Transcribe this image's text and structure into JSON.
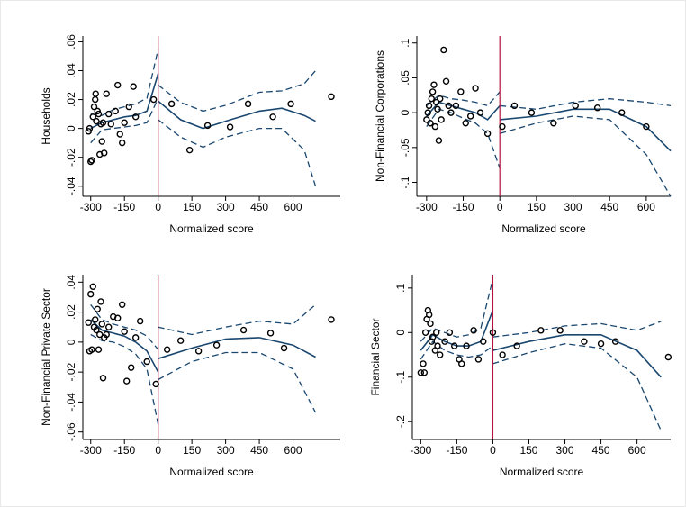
{
  "chart_data": [
    {
      "type": "scatter",
      "y_label": "Households",
      "x_label": "Normalized score",
      "xlim": [
        -335,
        810
      ],
      "ylim": [
        -0.047,
        0.064
      ],
      "xticks": [
        -300,
        -150,
        0,
        150,
        300,
        450,
        600
      ],
      "yticks": [
        {
          "value": -0.04,
          "label": "-.04"
        },
        {
          "value": -0.02,
          "label": "-.02"
        },
        0,
        {
          "value": 0.02,
          "label": ".02"
        },
        {
          "value": 0.04,
          "label": ".04"
        },
        {
          "value": 0.06,
          "label": ".06"
        }
      ],
      "vline": 0,
      "vline_color": "#b5123e",
      "series": [
        {
          "type": "scatter",
          "color": "#000000",
          "x": [
            -310,
            -305,
            -300,
            -295,
            -290,
            -285,
            -280,
            -278,
            -275,
            -270,
            -265,
            -260,
            -255,
            -250,
            -245,
            -240,
            -230,
            -220,
            -210,
            -190,
            -180,
            -170,
            -160,
            -150,
            -130,
            -110,
            -100,
            -20,
            60,
            140,
            220,
            320,
            400,
            510,
            590,
            770
          ],
          "values": [
            -0.002,
            0.0,
            -0.023,
            -0.022,
            0.008,
            0.015,
            0.02,
            0.024,
            0.005,
            0.012,
            0.01,
            -0.018,
            0.003,
            -0.009,
            0.004,
            -0.017,
            0.024,
            0.01,
            0.003,
            0.012,
            0.03,
            -0.004,
            -0.01,
            0.004,
            0.015,
            0.029,
            0.008,
            0.02,
            0.017,
            -0.015,
            0.002,
            0.001,
            0.017,
            0.008,
            0.017,
            0.022
          ]
        },
        {
          "type": "line",
          "style": "solid",
          "color": "#1a476f",
          "x": [
            -300,
            -250,
            -200,
            -150,
            -100,
            -50,
            0,
            null,
            0,
            100,
            200,
            300,
            450,
            550,
            650,
            700
          ],
          "values": [
            0.0,
            0.004,
            0.006,
            0.008,
            0.009,
            0.012,
            0.038,
            null,
            0.019,
            0.006,
            0.0,
            0.005,
            0.012,
            0.014,
            0.009,
            0.005
          ]
        },
        {
          "type": "line",
          "style": "dashed",
          "color": "#1a476f",
          "x": [
            -300,
            -250,
            -200,
            -150,
            -100,
            -50,
            0,
            null,
            0,
            100,
            200,
            300,
            450,
            550,
            650,
            700
          ],
          "values": [
            0.01,
            0.009,
            0.013,
            0.015,
            0.017,
            0.021,
            0.055,
            null,
            0.03,
            0.018,
            0.012,
            0.016,
            0.025,
            0.026,
            0.031,
            0.04
          ]
        },
        {
          "type": "line",
          "style": "dashed",
          "color": "#1a476f",
          "x": [
            -300,
            -250,
            -200,
            -150,
            -100,
            -50,
            0,
            null,
            0,
            100,
            200,
            300,
            450,
            550,
            650,
            700
          ],
          "values": [
            -0.01,
            -0.001,
            0.0,
            0.001,
            0.002,
            0.004,
            0.021,
            null,
            0.006,
            -0.006,
            -0.013,
            -0.006,
            0.0,
            0.0,
            -0.015,
            -0.04
          ]
        }
      ]
    },
    {
      "type": "scatter",
      "y_label": "Non-Financial Corporations",
      "x_label": "Normalized score",
      "xlim": [
        -340,
        700
      ],
      "ylim": [
        -0.12,
        0.11
      ],
      "xticks": [
        -300,
        -150,
        0,
        150,
        300,
        450,
        600
      ],
      "yticks": [
        {
          "value": -0.1,
          "label": "-.1"
        },
        {
          "value": -0.05,
          "label": "-.05"
        },
        0,
        {
          "value": 0.05,
          "label": ".05"
        },
        {
          "value": 0.1,
          "label": ".1"
        }
      ],
      "vline": 0,
      "vline_color": "#b5123e",
      "series": [
        {
          "type": "scatter",
          "color": "#000000",
          "x": [
            -300,
            -295,
            -290,
            -285,
            -280,
            -275,
            -270,
            -265,
            -260,
            -255,
            -250,
            -245,
            -240,
            -230,
            -220,
            -210,
            -200,
            -180,
            -160,
            -140,
            -120,
            -100,
            -80,
            -50,
            10,
            60,
            130,
            220,
            310,
            400,
            500,
            600
          ],
          "values": [
            -0.01,
            0.0,
            0.01,
            -0.015,
            0.02,
            0.03,
            0.04,
            -0.02,
            0.015,
            0.005,
            -0.04,
            0.02,
            -0.01,
            0.09,
            0.045,
            0.01,
            0.0,
            0.01,
            0.03,
            -0.015,
            -0.005,
            0.035,
            0.0,
            -0.03,
            -0.02,
            0.01,
            0.0,
            -0.015,
            0.01,
            0.007,
            0.0,
            -0.02
          ]
        },
        {
          "type": "line",
          "style": "solid",
          "color": "#1a476f",
          "x": [
            -300,
            -250,
            -200,
            -150,
            -100,
            -50,
            0,
            null,
            0,
            150,
            300,
            450,
            600,
            700
          ],
          "values": [
            -0.005,
            0.015,
            0.01,
            0.005,
            0.0,
            -0.01,
            0.01,
            null,
            -0.01,
            -0.005,
            0.005,
            0.005,
            -0.02,
            -0.055
          ]
        },
        {
          "type": "line",
          "style": "dashed",
          "color": "#1a476f",
          "x": [
            -300,
            -250,
            -200,
            -150,
            -100,
            -50,
            0,
            null,
            0,
            150,
            300,
            450,
            600,
            700
          ],
          "values": [
            0.01,
            0.025,
            0.02,
            0.018,
            0.015,
            0.01,
            0.03,
            null,
            0.01,
            0.005,
            0.015,
            0.02,
            0.015,
            0.01
          ]
        },
        {
          "type": "line",
          "style": "dashed",
          "color": "#1a476f",
          "x": [
            -300,
            -250,
            -200,
            -150,
            -100,
            -50,
            0,
            null,
            0,
            150,
            300,
            450,
            600,
            700
          ],
          "values": [
            -0.02,
            0.005,
            0.0,
            -0.008,
            -0.015,
            -0.03,
            -0.08,
            null,
            -0.03,
            -0.015,
            -0.005,
            -0.01,
            -0.06,
            -0.12
          ]
        }
      ]
    },
    {
      "type": "scatter",
      "y_label": "Non-Financial Private Sector",
      "x_label": "Normalized score",
      "xlim": [
        -335,
        810
      ],
      "ylim": [
        -0.065,
        0.045
      ],
      "xticks": [
        -300,
        -150,
        0,
        150,
        300,
        450,
        600
      ],
      "yticks": [
        {
          "value": -0.06,
          "label": "-.06"
        },
        {
          "value": -0.04,
          "label": "-.04"
        },
        {
          "value": -0.02,
          "label": "-.02"
        },
        0,
        {
          "value": 0.02,
          "label": ".02"
        },
        {
          "value": 0.04,
          "label": ".04"
        }
      ],
      "vline": 0,
      "vline_color": "#b5123e",
      "series": [
        {
          "type": "scatter",
          "color": "#000000",
          "x": [
            -310,
            -305,
            -300,
            -295,
            -290,
            -285,
            -280,
            -275,
            -270,
            -265,
            -260,
            -255,
            -250,
            -245,
            -240,
            -230,
            -220,
            -200,
            -180,
            -160,
            -150,
            -140,
            -120,
            -100,
            -80,
            -50,
            -10,
            40,
            100,
            180,
            260,
            380,
            500,
            560,
            770
          ],
          "values": [
            0.013,
            -0.006,
            0.032,
            -0.005,
            0.037,
            0.01,
            0.015,
            0.008,
            0.022,
            -0.005,
            0.005,
            0.027,
            0.012,
            -0.024,
            0.003,
            0.005,
            0.01,
            0.017,
            0.016,
            0.025,
            0.007,
            -0.026,
            -0.017,
            0.003,
            0.014,
            -0.013,
            -0.028,
            -0.005,
            0.001,
            -0.006,
            -0.002,
            0.008,
            0.006,
            -0.004,
            0.015
          ]
        },
        {
          "type": "line",
          "style": "solid",
          "color": "#1a476f",
          "x": [
            -300,
            -250,
            -200,
            -150,
            -100,
            -50,
            0,
            null,
            0,
            150,
            300,
            450,
            600,
            700
          ],
          "values": [
            0.015,
            0.008,
            0.006,
            0.004,
            0.0,
            -0.006,
            -0.02,
            null,
            -0.011,
            -0.004,
            0.002,
            0.003,
            -0.002,
            -0.01
          ]
        },
        {
          "type": "line",
          "style": "dashed",
          "color": "#1a476f",
          "x": [
            -300,
            -250,
            -200,
            -150,
            -100,
            -50,
            0,
            null,
            0,
            150,
            300,
            450,
            600,
            700
          ],
          "values": [
            0.025,
            0.015,
            0.012,
            0.01,
            0.008,
            0.004,
            -0.005,
            null,
            0.01,
            0.005,
            0.01,
            0.014,
            0.012,
            0.025
          ]
        },
        {
          "type": "line",
          "style": "dashed",
          "color": "#1a476f",
          "x": [
            -300,
            -250,
            -200,
            -150,
            -100,
            -50,
            0,
            null,
            0,
            150,
            300,
            450,
            600,
            700
          ],
          "values": [
            0.005,
            0.001,
            0.0,
            -0.003,
            -0.008,
            -0.018,
            -0.055,
            null,
            -0.025,
            -0.013,
            -0.007,
            -0.007,
            -0.018,
            -0.047
          ]
        }
      ]
    },
    {
      "type": "scatter",
      "y_label": "Financial Sector",
      "x_label": "Normalized score",
      "xlim": [
        -335,
        740
      ],
      "ylim": [
        -0.24,
        0.13
      ],
      "xticks": [
        -300,
        -150,
        0,
        150,
        300,
        450,
        600
      ],
      "yticks": [
        {
          "value": -0.2,
          "label": "-.2"
        },
        {
          "value": -0.1,
          "label": "-.1"
        },
        0,
        {
          "value": 0.1,
          "label": ".1"
        }
      ],
      "vline": 0,
      "vline_color": "#b5123e",
      "series": [
        {
          "type": "scatter",
          "color": "#000000",
          "x": [
            -300,
            -290,
            -285,
            -280,
            -275,
            -270,
            -265,
            -260,
            -255,
            -250,
            -240,
            -235,
            -230,
            -220,
            -200,
            -180,
            -160,
            -140,
            -130,
            -110,
            -80,
            -60,
            -40,
            0,
            40,
            100,
            200,
            280,
            380,
            450,
            510,
            730
          ],
          "values": [
            -0.09,
            -0.07,
            -0.09,
            0.0,
            0.03,
            0.05,
            0.04,
            0.02,
            -0.02,
            -0.01,
            -0.04,
            0.0,
            -0.03,
            -0.05,
            -0.02,
            0.0,
            -0.03,
            -0.06,
            -0.07,
            -0.03,
            0.005,
            -0.06,
            -0.02,
            0.0,
            -0.05,
            -0.03,
            0.005,
            0.005,
            -0.02,
            -0.025,
            -0.02,
            -0.055
          ]
        },
        {
          "type": "line",
          "style": "solid",
          "color": "#1a476f",
          "x": [
            -300,
            -250,
            -200,
            -150,
            -100,
            -50,
            0,
            null,
            0,
            150,
            300,
            450,
            600,
            700
          ],
          "values": [
            -0.04,
            -0.005,
            -0.02,
            -0.03,
            -0.03,
            -0.02,
            0.05,
            null,
            -0.04,
            -0.02,
            -0.005,
            -0.005,
            -0.04,
            -0.1
          ]
        },
        {
          "type": "line",
          "style": "dashed",
          "color": "#1a476f",
          "x": [
            -300,
            -250,
            -200,
            -150,
            -100,
            -50,
            0,
            null,
            0,
            150,
            300,
            450,
            600,
            700
          ],
          "values": [
            -0.02,
            0.01,
            0.0,
            -0.01,
            -0.005,
            0.01,
            0.12,
            null,
            -0.01,
            0.0,
            0.015,
            0.02,
            0.005,
            0.025
          ]
        },
        {
          "type": "line",
          "style": "dashed",
          "color": "#1a476f",
          "x": [
            -300,
            -250,
            -200,
            -150,
            -100,
            -50,
            0,
            null,
            0,
            150,
            300,
            450,
            600,
            700
          ],
          "values": [
            -0.06,
            -0.02,
            -0.04,
            -0.05,
            -0.055,
            -0.05,
            -0.03,
            null,
            -0.07,
            -0.045,
            -0.025,
            -0.035,
            -0.1,
            -0.22
          ]
        }
      ]
    }
  ]
}
